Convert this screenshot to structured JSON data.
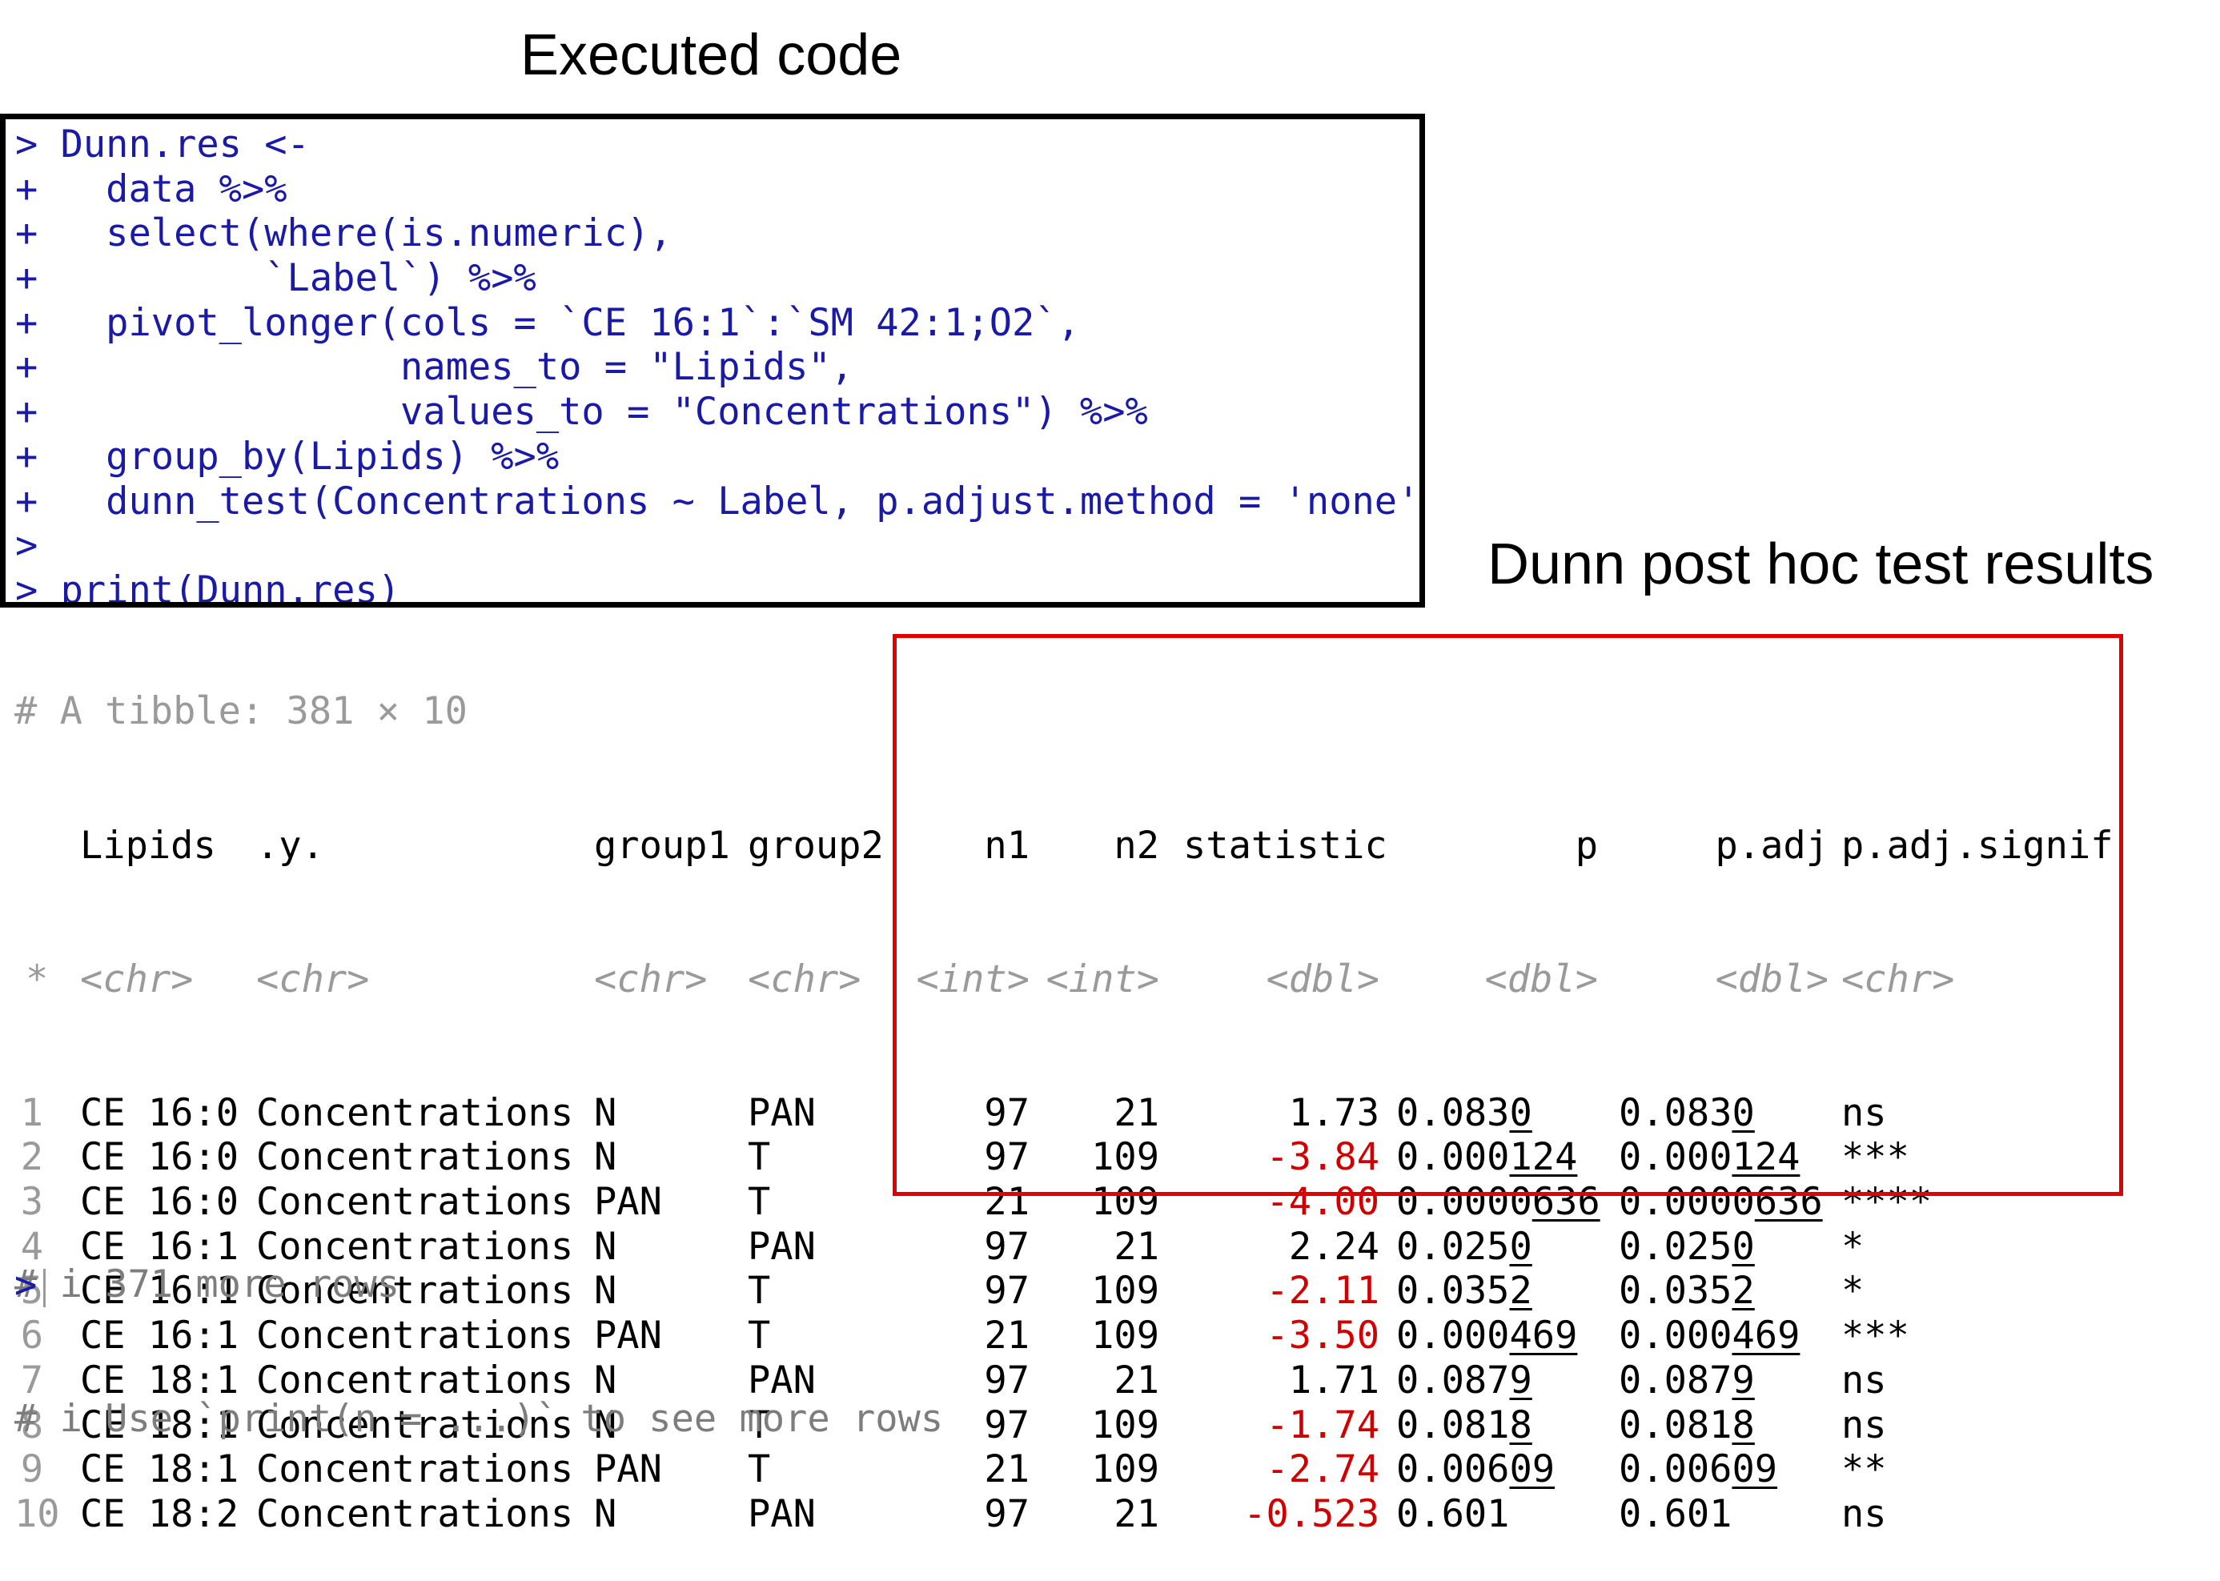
{
  "titles": {
    "executed_code": "Executed code",
    "dunn_results": "Dunn post hoc test results"
  },
  "code_lines": [
    "> Dunn.res <-",
    "+   data %>%",
    "+   select(where(is.numeric),",
    "+          `Label`) %>%",
    "+   pivot_longer(cols = `CE 16:1`:`SM 42:1;O2`,",
    "+                names_to = \"Lipids\",",
    "+                values_to = \"Concentrations\") %>%",
    "+   group_by(Lipids) %>%",
    "+   dunn_test(Concentrations ~ Label, p.adjust.method = 'none')",
    ">",
    "> print(Dunn.res)"
  ],
  "tibble_header": "# A tibble: 381 × 10",
  "columns": [
    "Lipids",
    ".y.",
    "group1",
    "group2",
    "n1",
    "n2",
    "statistic",
    "p",
    "p.adj",
    "p.adj.signif"
  ],
  "types": [
    "<chr>",
    "<chr>",
    "<chr>",
    "<chr>",
    "<int>",
    "<int>",
    "<dbl>",
    "<dbl>",
    "<dbl>",
    "<chr>"
  ],
  "type_row_marker": "*",
  "rows": [
    {
      "idx": "1",
      "lipid": "CE 16:0",
      "y": "Concentrations",
      "g1": "N",
      "g2": "PAN",
      "n1": "97",
      "n2": "21",
      "stat": "1.73",
      "p_a": "0.083",
      "p_b": "0",
      "padj_a": "0.083",
      "padj_b": "0",
      "sig": "ns"
    },
    {
      "idx": "2",
      "lipid": "CE 16:0",
      "y": "Concentrations",
      "g1": "N",
      "g2": "T",
      "n1": "97",
      "n2": "109",
      "stat": "-3.84",
      "p_a": "0.000",
      "p_b": "124",
      "padj_a": "0.000",
      "padj_b": "124",
      "sig": "***"
    },
    {
      "idx": "3",
      "lipid": "CE 16:0",
      "y": "Concentrations",
      "g1": "PAN",
      "g2": "T",
      "n1": "21",
      "n2": "109",
      "stat": "-4.00",
      "p_a": "0.0000",
      "p_b": "636",
      "padj_a": "0.0000",
      "padj_b": "636",
      "sig": "****"
    },
    {
      "idx": "4",
      "lipid": "CE 16:1",
      "y": "Concentrations",
      "g1": "N",
      "g2": "PAN",
      "n1": "97",
      "n2": "21",
      "stat": "2.24",
      "p_a": "0.025",
      "p_b": "0",
      "padj_a": "0.025",
      "padj_b": "0",
      "sig": "*"
    },
    {
      "idx": "5",
      "lipid": "CE 16:1",
      "y": "Concentrations",
      "g1": "N",
      "g2": "T",
      "n1": "97",
      "n2": "109",
      "stat": "-2.11",
      "p_a": "0.035",
      "p_b": "2",
      "padj_a": "0.035",
      "padj_b": "2",
      "sig": "*"
    },
    {
      "idx": "6",
      "lipid": "CE 16:1",
      "y": "Concentrations",
      "g1": "PAN",
      "g2": "T",
      "n1": "21",
      "n2": "109",
      "stat": "-3.50",
      "p_a": "0.000",
      "p_b": "469",
      "padj_a": "0.000",
      "padj_b": "469",
      "sig": "***"
    },
    {
      "idx": "7",
      "lipid": "CE 18:1",
      "y": "Concentrations",
      "g1": "N",
      "g2": "PAN",
      "n1": "97",
      "n2": "21",
      "stat": "1.71",
      "p_a": "0.087",
      "p_b": "9",
      "padj_a": "0.087",
      "padj_b": "9",
      "sig": "ns"
    },
    {
      "idx": "8",
      "lipid": "CE 18:1",
      "y": "Concentrations",
      "g1": "N",
      "g2": "T",
      "n1": "97",
      "n2": "109",
      "stat": "-1.74",
      "p_a": "0.081",
      "p_b": "8",
      "padj_a": "0.081",
      "padj_b": "8",
      "sig": "ns"
    },
    {
      "idx": "9",
      "lipid": "CE 18:1",
      "y": "Concentrations",
      "g1": "PAN",
      "g2": "T",
      "n1": "21",
      "n2": "109",
      "stat": "-2.74",
      "p_a": "0.006",
      "p_b": "09",
      "padj_a": "0.006",
      "padj_b": "09",
      "sig": "**"
    },
    {
      "idx": "10",
      "lipid": "CE 18:2",
      "y": "Concentrations",
      "g1": "N",
      "g2": "PAN",
      "n1": "97",
      "n2": "21",
      "stat": "-0.523",
      "p_a": "0.601",
      "p_b": "",
      "padj_a": "0.601",
      "padj_b": "",
      "sig": "ns"
    }
  ],
  "footer_lines": [
    "# i 371 more rows",
    "# i Use `print(n = ...)` to see more rows"
  ],
  "final_prompt": ">",
  "colors": {
    "code_blue": "#1a1aa6",
    "negative_red": "#d00000",
    "highlight_box": "#e00000",
    "grey": "#9a9a9a"
  }
}
